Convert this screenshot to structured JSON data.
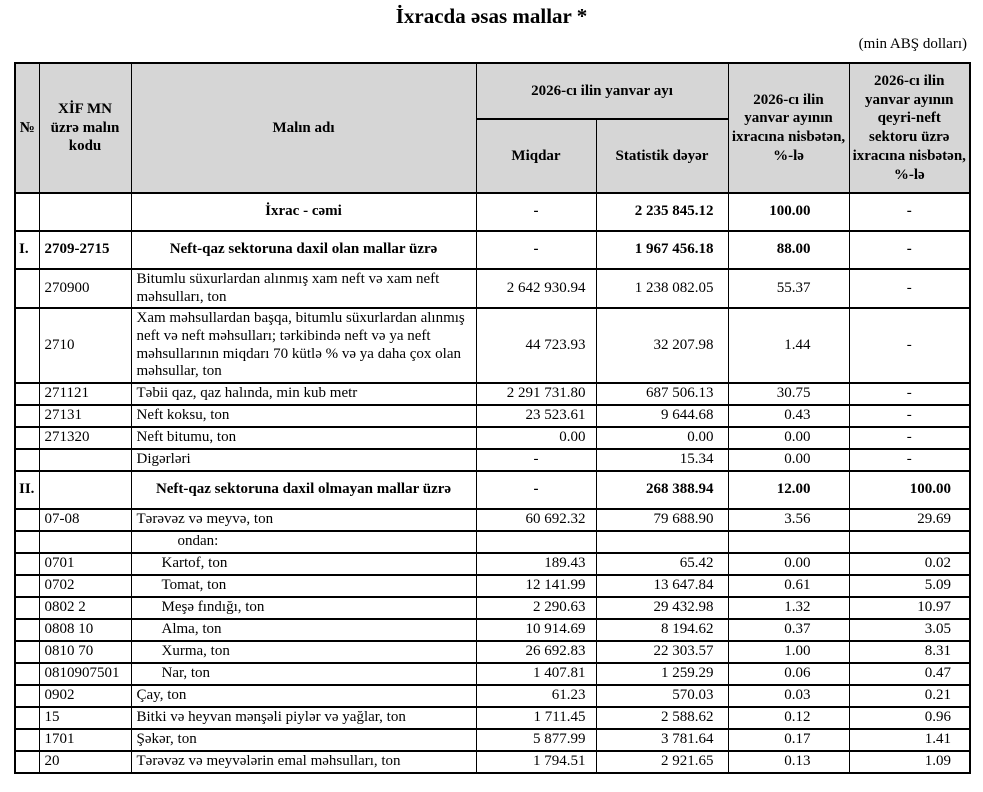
{
  "page": {
    "title": "İxracda əsas mallar *",
    "unit_note": "(min ABŞ dolları)"
  },
  "colors": {
    "header_bg": "#d6d6d6",
    "border": "#000000",
    "text": "#000000"
  },
  "table": {
    "header": {
      "no": "№",
      "code": "XİF MN üzrə malın kodu",
      "name": "Malın adı",
      "january_group": "2026-cı ilin yanvar ayı",
      "quantity": "Miqdar",
      "stat_value": "Statistik dəyər",
      "pct_total": "2026-cı ilin yanvar ayının ixracına nisbətən, %-lə",
      "pct_nonoil": "2026-cı ilin yanvar ayının qeyri-neft sektoru üzrə ixracına nisbətən, %-lə"
    },
    "rows": [
      {
        "no": "",
        "code": "",
        "name": "İxrac - cəmi",
        "qty": "-",
        "stat": "2 235 845.12",
        "pct": "100.00",
        "nonoil": "-",
        "section": true,
        "indent": "none"
      },
      {
        "no": "I.",
        "code": "2709-2715",
        "name": "Neft-qaz sektoruna daxil olan mallar üzrə",
        "qty": "-",
        "stat": "1 967 456.18",
        "pct": "88.00",
        "nonoil": "-",
        "section": true,
        "indent": "none"
      },
      {
        "no": "",
        "code": "270900",
        "name": "Bitumlu süxurlardan alınmış xam neft və xam neft məhsulları, ton",
        "qty": "2 642 930.94",
        "stat": "1 238 082.05",
        "pct": "55.37",
        "nonoil": "-",
        "section": false,
        "indent": "none"
      },
      {
        "no": "",
        "code": "2710",
        "name": "Xam məhsullardan başqa, bitumlu süxurlardan alınmış neft və neft məhsulları; tərkibində neft və ya neft məhsullarının miqdarı 70 kütlə % və ya daha çox olan məhsullar, ton",
        "qty": "44 723.93",
        "stat": "32 207.98",
        "pct": "1.44",
        "nonoil": "-",
        "section": false,
        "indent": "none"
      },
      {
        "no": "",
        "code": "271121",
        "name": "Təbii qaz, qaz halında, min kub metr",
        "qty": "2 291 731.80",
        "stat": "687 506.13",
        "pct": "30.75",
        "nonoil": "-",
        "section": false,
        "indent": "none"
      },
      {
        "no": "",
        "code": "27131",
        "name": "Neft koksu, ton",
        "qty": "23 523.61",
        "stat": "9 644.68",
        "pct": "0.43",
        "nonoil": "-",
        "section": false,
        "indent": "none"
      },
      {
        "no": "",
        "code": "271320",
        "name": "Neft bitumu, ton",
        "qty": "0.00",
        "stat": "0.00",
        "pct": "0.00",
        "nonoil": "-",
        "section": false,
        "indent": "none"
      },
      {
        "no": "",
        "code": "",
        "name": "Digərləri",
        "qty": "-",
        "stat": "15.34",
        "pct": "0.00",
        "nonoil": "-",
        "section": false,
        "indent": "none"
      },
      {
        "no": "II.",
        "code": "",
        "name": "Neft-qaz sektoruna daxil olmayan mallar üzrə",
        "qty": "-",
        "stat": "268 388.94",
        "pct": "12.00",
        "nonoil": "100.00",
        "section": true,
        "indent": "none"
      },
      {
        "no": "",
        "code": "07-08",
        "name": "Tərəvəz və meyvə, ton",
        "qty": "60 692.32",
        "stat": "79 688.90",
        "pct": "3.56",
        "nonoil": "29.69",
        "section": false,
        "indent": "none"
      },
      {
        "no": "",
        "code": "",
        "name": "ondan:",
        "qty": "",
        "stat": "",
        "pct": "",
        "nonoil": "",
        "section": false,
        "indent": "ondan"
      },
      {
        "no": "",
        "code": "0701",
        "name": "Kartof, ton",
        "qty": "189.43",
        "stat": "65.42",
        "pct": "0.00",
        "nonoil": "0.02",
        "section": false,
        "indent": "sub"
      },
      {
        "no": "",
        "code": "0702",
        "name": "Tomat, ton",
        "qty": "12 141.99",
        "stat": "13 647.84",
        "pct": "0.61",
        "nonoil": "5.09",
        "section": false,
        "indent": "sub"
      },
      {
        "no": "",
        "code": "0802 2",
        "name": "Meşə fındığı, ton",
        "qty": "2 290.63",
        "stat": "29 432.98",
        "pct": "1.32",
        "nonoil": "10.97",
        "section": false,
        "indent": "sub"
      },
      {
        "no": "",
        "code": "0808 10",
        "name": "Alma, ton",
        "qty": "10 914.69",
        "stat": "8 194.62",
        "pct": "0.37",
        "nonoil": "3.05",
        "section": false,
        "indent": "sub"
      },
      {
        "no": "",
        "code": "0810 70",
        "name": "Xurma, ton",
        "qty": "26 692.83",
        "stat": "22 303.57",
        "pct": "1.00",
        "nonoil": "8.31",
        "section": false,
        "indent": "sub"
      },
      {
        "no": "",
        "code": "0810907501",
        "name": "Nar, ton",
        "qty": "1 407.81",
        "stat": "1 259.29",
        "pct": "0.06",
        "nonoil": "0.47",
        "section": false,
        "indent": "sub"
      },
      {
        "no": "",
        "code": "0902",
        "name": "Çay, ton",
        "qty": "61.23",
        "stat": "570.03",
        "pct": "0.03",
        "nonoil": "0.21",
        "section": false,
        "indent": "none"
      },
      {
        "no": "",
        "code": "15",
        "name": "Bitki və heyvan mənşəli piylər və yağlar, ton",
        "qty": "1 711.45",
        "stat": "2 588.62",
        "pct": "0.12",
        "nonoil": "0.96",
        "section": false,
        "indent": "none"
      },
      {
        "no": "",
        "code": "1701",
        "name": "Şəkər, ton",
        "qty": "5 877.99",
        "stat": "3 781.64",
        "pct": "0.17",
        "nonoil": "1.41",
        "section": false,
        "indent": "none"
      },
      {
        "no": "",
        "code": "20",
        "name": "Tərəvəz və meyvələrin emal məhsulları, ton",
        "qty": "1 794.51",
        "stat": "2 921.65",
        "pct": "0.13",
        "nonoil": "1.09",
        "section": false,
        "indent": "none"
      }
    ]
  }
}
